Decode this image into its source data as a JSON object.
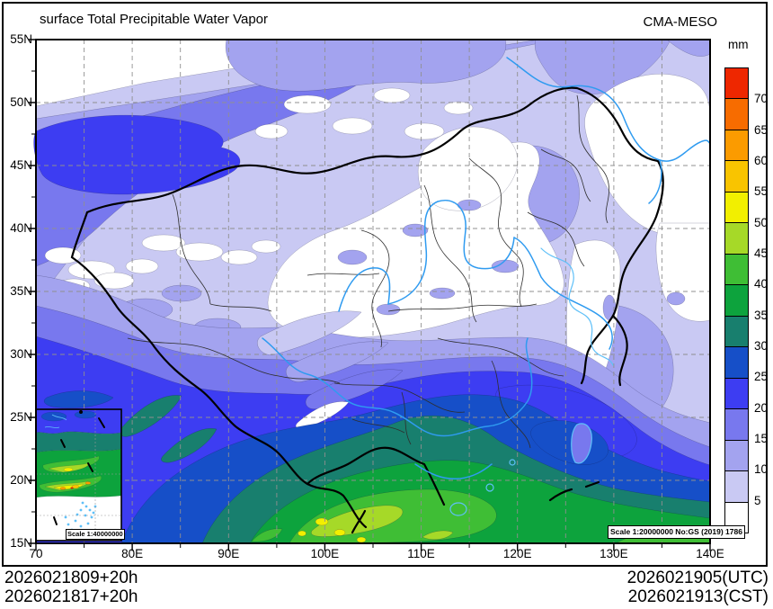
{
  "header": {
    "title": "surface Total Precipitable Water Vapor",
    "model": "CMA-MESO"
  },
  "colorbar": {
    "unit": "mm",
    "ticks": [
      "70",
      "65",
      "60",
      "55",
      "50",
      "45",
      "40",
      "35",
      "30",
      "25",
      "20",
      "15",
      "10",
      "5"
    ],
    "order": [
      "gt70",
      "65-70",
      "60-65",
      "55-60",
      "50-55",
      "45-50",
      "40-45",
      "35-40",
      "30-35",
      "25-30",
      "20-25",
      "15-20",
      "10-15",
      "5-10",
      "lt5"
    ],
    "level_colors": {
      "gt70": "#ee2700",
      "65-70": "#f76c00",
      "60-65": "#fb9b00",
      "55-60": "#f9c400",
      "50-55": "#f2ef00",
      "45-50": "#a6d928",
      "40-45": "#3fbe35",
      "35-40": "#0da33d",
      "30-35": "#187f6e",
      "25-30": "#164fc8",
      "20-25": "#3d3df2",
      "15-20": "#7878ee",
      "10-15": "#a3a3ef",
      "5-10": "#c9c9f3",
      "lt5": "#ffffff"
    }
  },
  "axes": {
    "lat": [
      "55N",
      "50N",
      "45N",
      "40N",
      "35N",
      "30N",
      "25N",
      "20N",
      "15N"
    ],
    "lon": [
      "70",
      "80E",
      "90E",
      "100E",
      "110E",
      "120E",
      "130E",
      "140E"
    ]
  },
  "map": {
    "scale_note": "Scale 1:20000000 No:GS (2019) 1786",
    "inset_scale_note": "Scale 1:40000000",
    "colors": {
      "river": "#2f9bf0",
      "coast": "#5fc0f8",
      "border": "#000000",
      "province": "#2e2e2e",
      "grid": "#8f8f8f"
    }
  },
  "footer": {
    "run_line1": "2026021809+20h",
    "run_line2": "2026021817+20h",
    "valid_line1": "2026021905(UTC)",
    "valid_line2": "2026021913(CST)"
  }
}
